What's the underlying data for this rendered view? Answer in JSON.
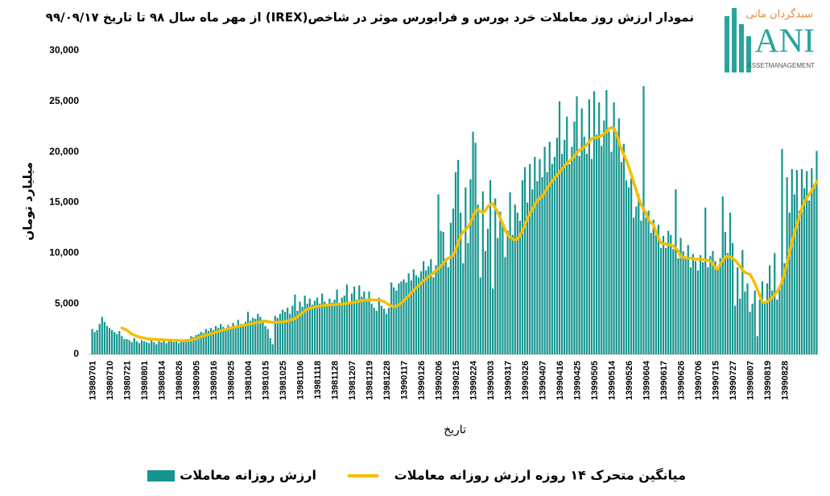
{
  "logo": {
    "mark": "ANI",
    "brand": "سبدگردان مانی",
    "tagline": "ASSETMANAGEMENT"
  },
  "chart_data": {
    "type": "bar",
    "title": "نمودار ارزش روز معاملات خرد بورس و فرابورس موثر در شاخص(IREX)  از مهر ماه سال ۹۸ تا تاریخ ۹۹/۰۹/۱۷",
    "y_label": "میلیارد تومان",
    "x_label": "تاریخ",
    "ylim": [
      0,
      30000
    ],
    "yticks": [
      0,
      {
        "value": 5000,
        "label": "5,000"
      },
      {
        "value": 10000,
        "label": "10,000"
      },
      {
        "value": 15000,
        "label": "15,000"
      },
      {
        "value": 20000,
        "label": "20,000"
      },
      {
        "value": 25000,
        "label": "25,000"
      },
      {
        "value": 30000,
        "label": "30,000"
      }
    ],
    "grid": false,
    "categories": [
      "13980701",
      null,
      null,
      null,
      null,
      null,
      null,
      "13980710",
      null,
      null,
      null,
      null,
      null,
      null,
      "13980721",
      null,
      null,
      null,
      null,
      null,
      null,
      "13980801",
      null,
      null,
      null,
      null,
      null,
      null,
      "13980814",
      null,
      null,
      null,
      null,
      null,
      null,
      "13980826",
      null,
      null,
      null,
      null,
      null,
      null,
      "13980905",
      null,
      null,
      null,
      null,
      null,
      null,
      "13980916",
      null,
      null,
      null,
      null,
      null,
      null,
      "13980925",
      null,
      null,
      null,
      null,
      null,
      null,
      "13981004",
      null,
      null,
      null,
      null,
      null,
      null,
      "13981015",
      null,
      null,
      null,
      null,
      null,
      null,
      "13981025",
      null,
      null,
      null,
      null,
      null,
      null,
      "13981106",
      null,
      null,
      null,
      null,
      null,
      null,
      "13981118",
      null,
      null,
      null,
      null,
      null,
      null,
      "13981128",
      null,
      null,
      null,
      null,
      null,
      null,
      "13981207",
      null,
      null,
      null,
      null,
      null,
      null,
      "13981219",
      null,
      null,
      null,
      null,
      null,
      null,
      "13981228",
      null,
      null,
      null,
      null,
      null,
      null,
      "13990117",
      null,
      null,
      null,
      null,
      null,
      null,
      "13990126",
      null,
      null,
      null,
      null,
      null,
      null,
      "13990206",
      null,
      null,
      null,
      null,
      null,
      null,
      "13990215",
      null,
      null,
      null,
      null,
      null,
      null,
      "13990224",
      null,
      null,
      null,
      null,
      null,
      null,
      "13990303",
      null,
      null,
      null,
      null,
      null,
      null,
      "13990317",
      null,
      null,
      null,
      null,
      null,
      null,
      "13990326",
      null,
      null,
      null,
      null,
      null,
      null,
      "13990407",
      null,
      null,
      null,
      null,
      null,
      null,
      "13990416",
      null,
      null,
      null,
      null,
      null,
      null,
      "13990425",
      null,
      null,
      null,
      null,
      null,
      null,
      "13990505",
      null,
      null,
      null,
      null,
      null,
      null,
      "13990514",
      null,
      null,
      null,
      null,
      null,
      null,
      "13990526",
      null,
      null,
      null,
      null,
      null,
      null,
      "13990604",
      null,
      null,
      null,
      null,
      null,
      null,
      "13990617",
      null,
      null,
      null,
      null,
      null,
      null,
      "13990626",
      null,
      null,
      null,
      null,
      null,
      null,
      "13990706",
      null,
      null,
      null,
      null,
      null,
      null,
      "13990715",
      null,
      null,
      null,
      null,
      null,
      null,
      "13990727",
      null,
      null,
      null,
      null,
      null,
      null,
      "13990807",
      null,
      null,
      null,
      null,
      null,
      null,
      "13990819",
      null,
      null,
      null,
      null,
      null,
      null,
      "13990828",
      null,
      null,
      null,
      null,
      null,
      null,
      null,
      null,
      null,
      null,
      null,
      null,
      null
    ],
    "series": [
      {
        "name": "ارزش روزانه معاملات",
        "type": "bar",
        "color": "#15958f",
        "values": [
          2500,
          2200,
          2400,
          3000,
          3700,
          3200,
          2800,
          2600,
          2400,
          2200,
          2000,
          2300,
          1800,
          1500,
          1500,
          1400,
          1200,
          1600,
          1300,
          1100,
          1400,
          1300,
          1200,
          1100,
          1400,
          1200,
          1000,
          1300,
          1200,
          1400,
          1100,
          1300,
          1500,
          1200,
          1400,
          1100,
          1300,
          1200,
          1500,
          1400,
          1800,
          1700,
          1900,
          2000,
          2200,
          2100,
          2500,
          2300,
          2600,
          2400,
          2800,
          2600,
          3000,
          2700,
          2500,
          2900,
          2700,
          3100,
          2600,
          3400,
          3000,
          2800,
          3200,
          4200,
          3300,
          3600,
          3500,
          4000,
          3700,
          3400,
          2800,
          2500,
          1600,
          1000,
          3800,
          3600,
          4000,
          4400,
          4200,
          4600,
          4000,
          4800,
          5900,
          4300,
          5200,
          4700,
          5800,
          5000,
          5500,
          4900,
          5300,
          5600,
          5000,
          6000,
          5200,
          4800,
          5500,
          5100,
          5400,
          6400,
          5000,
          5600,
          5800,
          6900,
          5200,
          6000,
          6700,
          5400,
          6800,
          5700,
          6200,
          5500,
          6200,
          5000,
          4600,
          4300,
          5600,
          4800,
          4500,
          4000,
          4600,
          7100,
          6600,
          6300,
          7000,
          7200,
          7400,
          7100,
          8000,
          7300,
          8400,
          7800,
          7600,
          8200,
          9200,
          8300,
          8700,
          9400,
          7600,
          8800,
          15800,
          12200,
          12100,
          9500,
          8600,
          13000,
          14400,
          18000,
          19200,
          14000,
          9000,
          16500,
          11000,
          17300,
          22000,
          20900,
          14800,
          7600,
          16100,
          10200,
          12400,
          17200,
          6500,
          15400,
          11500,
          14100,
          13000,
          9600,
          12200,
          16000,
          11800,
          14800,
          14000,
          13200,
          17200,
          18500,
          15000,
          18800,
          16300,
          19500,
          17100,
          19300,
          17500,
          20500,
          18000,
          21000,
          18800,
          19500,
          21400,
          25000,
          19800,
          21200,
          23500,
          18800,
          20500,
          23000,
          25500,
          19600,
          24300,
          21500,
          19800,
          25200,
          19300,
          26000,
          21700,
          24900,
          20600,
          23100,
          26100,
          22000,
          20000,
          24900,
          22000,
          23300,
          19000,
          20800,
          17200,
          16500,
          17400,
          13500,
          14600,
          15800,
          13200,
          26500,
          13500,
          14200,
          12000,
          13300,
          11800,
          12800,
          10500,
          11700,
          10500,
          12200,
          11800,
          10400,
          16300,
          9500,
          11500,
          10200,
          9400,
          10800,
          8600,
          9900,
          9200,
          8300,
          9800,
          9100,
          14500,
          8600,
          9700,
          10200,
          9200,
          8300,
          9500,
          15600,
          12100,
          10000,
          14000,
          11000,
          4800,
          8600,
          5500,
          10300,
          6200,
          7000,
          4200,
          5000,
          6300,
          1800,
          5400,
          7200,
          5100,
          7000,
          8800,
          6300,
          10000,
          5400,
          6400,
          20300,
          9000,
          17500,
          14000,
          18300,
          15800,
          18200,
          14200,
          18300,
          16400,
          18100,
          15200,
          18400,
          16800,
          20100
        ]
      },
      {
        "name": "میانگین متحرک ۱۴ روزه ارزش روزانه معاملات",
        "type": "line",
        "color": "#f5be00",
        "values": [
          null,
          null,
          null,
          null,
          null,
          null,
          null,
          null,
          null,
          null,
          null,
          null,
          2600,
          2500,
          2400,
          2200,
          2000,
          1900,
          1800,
          1700,
          1650,
          1600,
          1550,
          1500,
          1500,
          1480,
          1450,
          1450,
          1450,
          1430,
          1420,
          1400,
          1400,
          1380,
          1380,
          1350,
          1350,
          1340,
          1350,
          1380,
          1420,
          1480,
          1550,
          1630,
          1720,
          1800,
          1880,
          1950,
          2020,
          2100,
          2180,
          2250,
          2320,
          2400,
          2460,
          2520,
          2580,
          2640,
          2700,
          2750,
          2800,
          2850,
          2900,
          2950,
          3000,
          3050,
          3100,
          3150,
          3200,
          3250,
          3300,
          3250,
          3200,
          3150,
          3150,
          3160,
          3180,
          3200,
          3250,
          3300,
          3380,
          3450,
          3550,
          3700,
          3900,
          4100,
          4300,
          4450,
          4550,
          4620,
          4680,
          4720,
          4760,
          4800,
          4830,
          4850,
          4870,
          4890,
          4900,
          4920,
          4940,
          4960,
          5000,
          5030,
          5060,
          5100,
          5150,
          5200,
          5250,
          5300,
          5330,
          5350,
          5380,
          5380,
          5370,
          5360,
          5350,
          5300,
          5200,
          5050,
          4900,
          4800,
          4700,
          4750,
          4900,
          5050,
          5300,
          5550,
          5800,
          6050,
          6300,
          6550,
          6800,
          7050,
          7250,
          7450,
          7650,
          7850,
          8050,
          8250,
          8450,
          8700,
          9000,
          9300,
          9500,
          9600,
          9800,
          10300,
          11000,
          11700,
          12100,
          12300,
          12600,
          13000,
          13600,
          14200,
          14300,
          14100,
          14000,
          14200,
          14600,
          14800,
          14900,
          14500,
          14000,
          13500,
          12900,
          12300,
          11800,
          11600,
          11400,
          11300,
          11400,
          11700,
          12200,
          12800,
          13400,
          13900,
          14300,
          14800,
          15200,
          15400,
          15600,
          16000,
          16400,
          16800,
          17100,
          17400,
          17700,
          18000,
          18300,
          18600,
          18900,
          19100,
          19300,
          19600,
          19900,
          20200,
          20300,
          20500,
          20700,
          21000,
          21300,
          21400,
          21400,
          21500,
          21600,
          21800,
          22000,
          22300,
          22400,
          22300,
          21800,
          21000,
          20300,
          19700,
          19200,
          18500,
          17800,
          17000,
          16200,
          15400,
          14800,
          14300,
          13900,
          13300,
          13000,
          12800,
          12100,
          11500,
          11000,
          10900,
          10900,
          10800,
          10800,
          10700,
          10500,
          10200,
          9600,
          9600,
          9550,
          9500,
          9500,
          9450,
          9400,
          9400,
          9400,
          9350,
          9300,
          9300,
          9200,
          9000,
          8500,
          8400,
          8900,
          9300,
          9600,
          9700,
          9600,
          9500,
          9300,
          9000,
          8700,
          8300,
          8100,
          8000,
          7900,
          7500,
          7000,
          6400,
          5800,
          5200,
          5100,
          5200,
          5400,
          5600,
          5900,
          6200,
          6600,
          7200,
          8000,
          9000,
          10000,
          11000,
          12000,
          12800,
          13600,
          14400,
          15000,
          15500,
          15800,
          16200,
          16600,
          17100
        ]
      }
    ]
  }
}
